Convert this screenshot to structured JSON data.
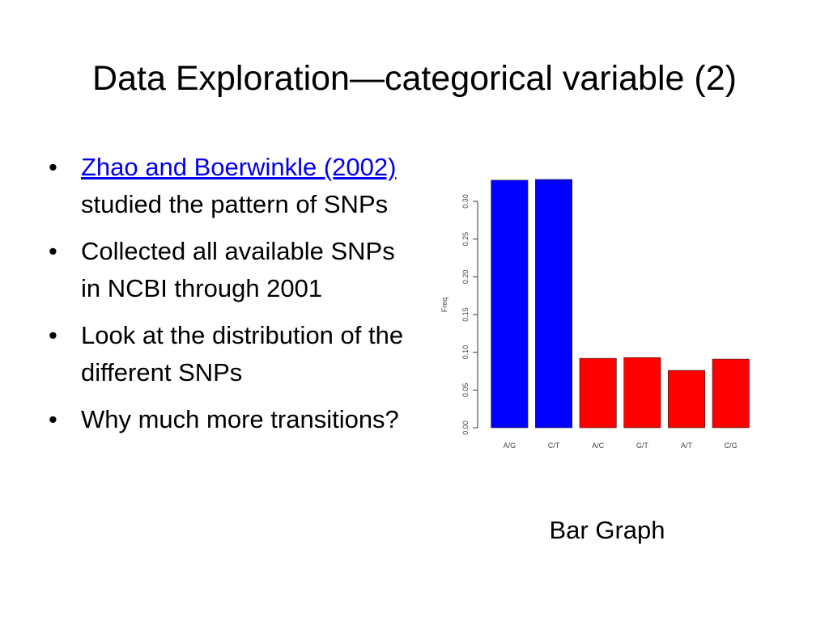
{
  "slide": {
    "title": "Data Exploration—categorical variable (2)",
    "caption": "Bar Graph"
  },
  "bullets": [
    {
      "link": "Zhao and  Boerwinkle (2002) ",
      "text": "studied the pattern of SNPs"
    },
    {
      "link": "",
      "text": "Collected all available SNPs in NCBI through 2001"
    },
    {
      "link": "",
      "text": "Look at the distribution of the different SNPs"
    },
    {
      "link": "",
      "text": "Why much more transitions?"
    }
  ],
  "colors": {
    "transition": "#0000ff",
    "transversion": "#ff0000",
    "link": "#0000ee"
  },
  "chart_data": {
    "type": "bar",
    "categories": [
      "A/G",
      "C/T",
      "A/C",
      "G/T",
      "A/T",
      "C/G"
    ],
    "values": [
      0.328,
      0.329,
      0.092,
      0.093,
      0.076,
      0.091
    ],
    "bar_colors": [
      "#0000ff",
      "#0000ff",
      "#ff0000",
      "#ff0000",
      "#ff0000",
      "#ff0000"
    ],
    "ylabel": "Freq",
    "xlabel": "",
    "ylim": [
      0,
      0.33
    ],
    "yticks": [
      0.0,
      0.05,
      0.1,
      0.15,
      0.2,
      0.25,
      0.3
    ],
    "ytick_labels": [
      "0.00",
      "0.05",
      "0.10",
      "0.15",
      "0.20",
      "0.25",
      "0.30"
    ],
    "grid": false,
    "legend": "none"
  }
}
